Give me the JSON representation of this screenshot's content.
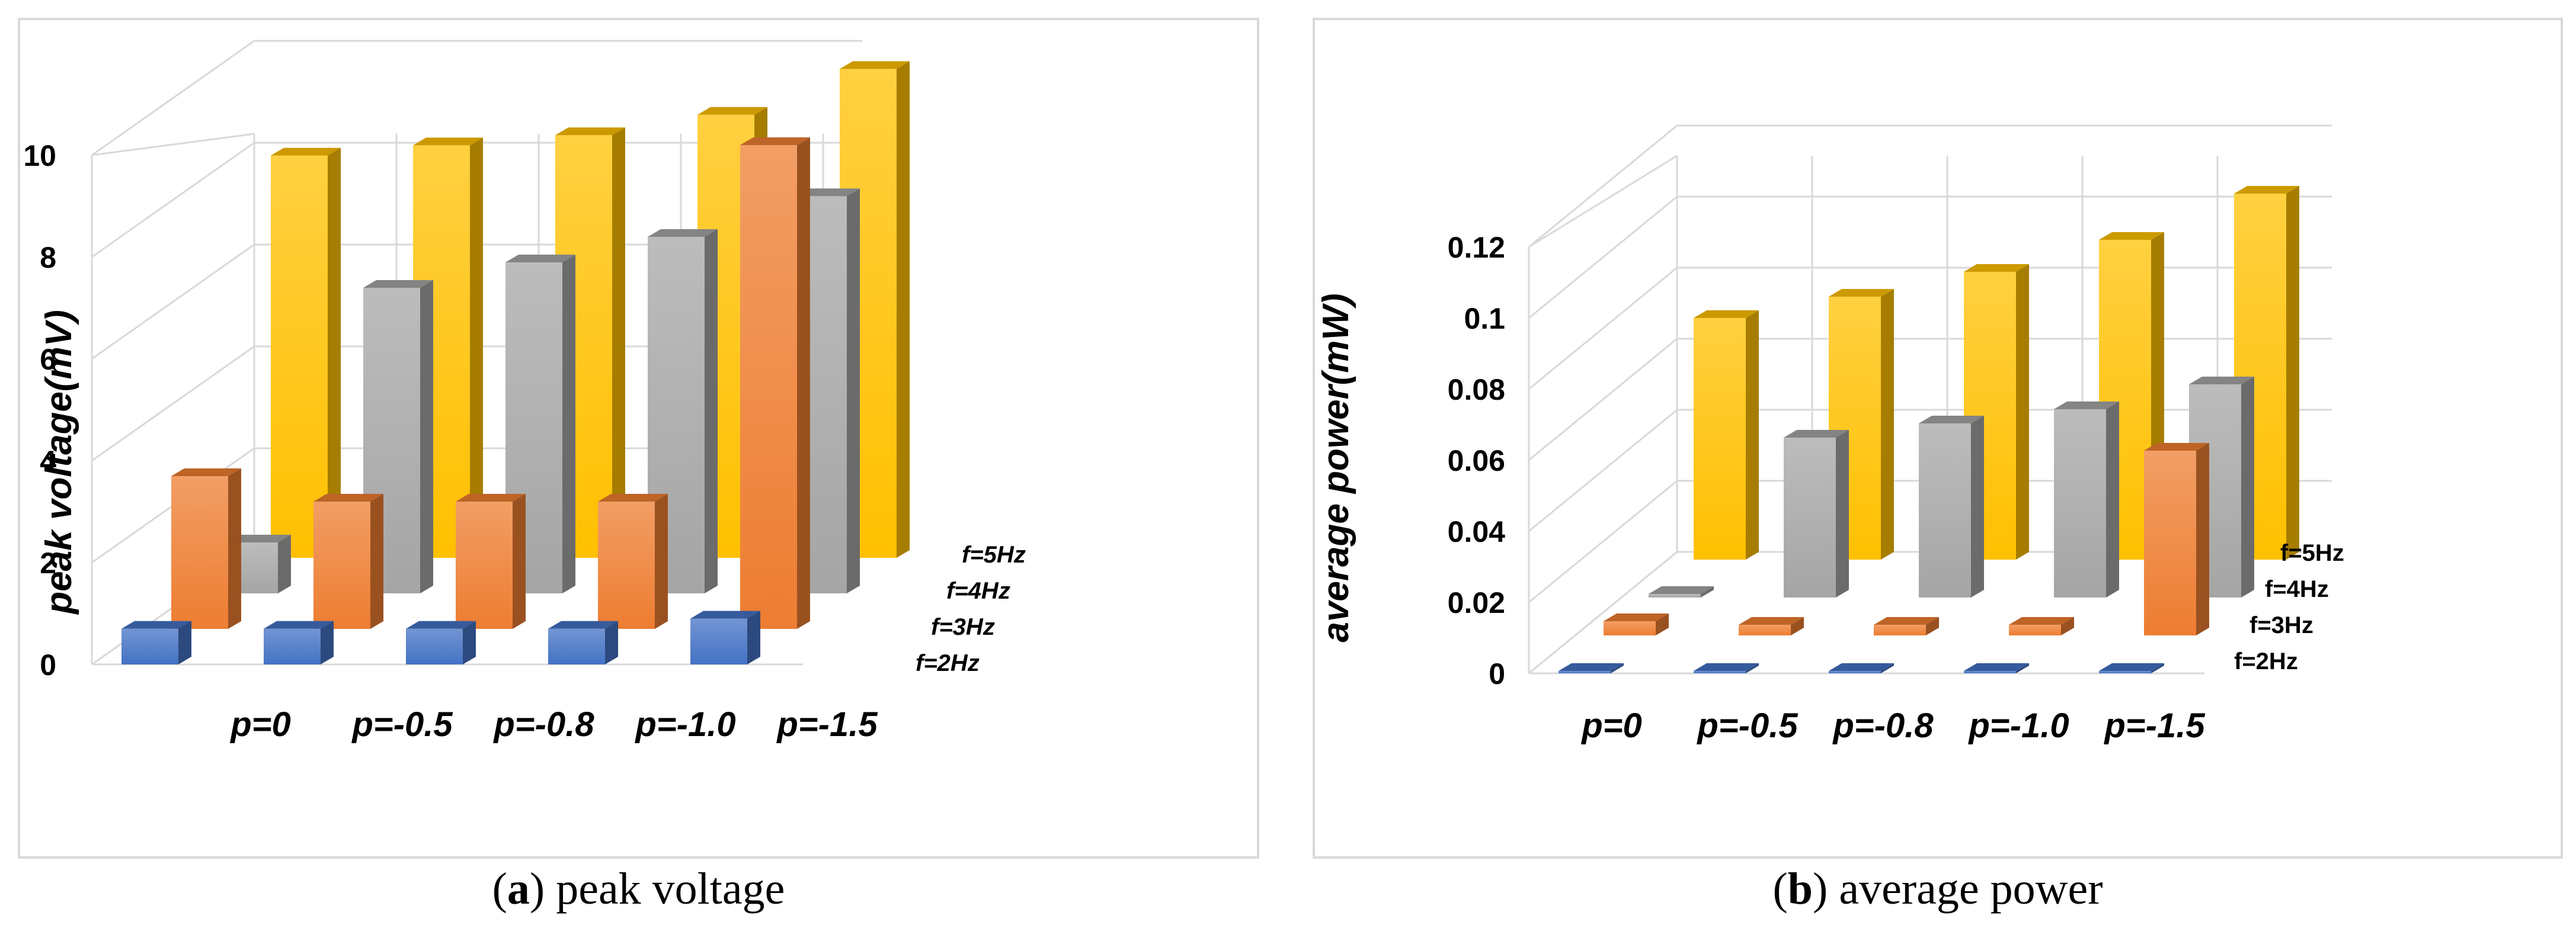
{
  "chart_data": [
    {
      "type": "bar3d",
      "title": "",
      "ylabel": "peak voltage(mV)",
      "categories": [
        "p=0",
        "p=-0.5",
        "p=-0.8",
        "p=-1.0",
        "p=-1.5"
      ],
      "yticks": [
        "0",
        "2",
        "4",
        "6",
        "8",
        "10"
      ],
      "ylim": [
        0,
        10
      ],
      "series": [
        {
          "name": "f=2Hz",
          "color": "#4472c4",
          "values": [
            0.7,
            0.7,
            0.7,
            0.7,
            0.9
          ]
        },
        {
          "name": "f=3Hz",
          "color": "#ed7d31",
          "values": [
            3.0,
            2.5,
            2.5,
            2.5,
            9.5
          ]
        },
        {
          "name": "f=4Hz",
          "color": "#a5a5a5",
          "values": [
            1.0,
            6.0,
            6.5,
            7.0,
            7.8
          ]
        },
        {
          "name": "f=5Hz",
          "color": "#ffc000",
          "values": [
            7.9,
            8.1,
            8.3,
            8.7,
            9.6
          ]
        }
      ]
    },
    {
      "type": "bar3d",
      "title": "",
      "ylabel": "average power(mW)",
      "categories": [
        "p=0",
        "p=-0.5",
        "p=-0.8",
        "p=-1.0",
        "p=-1.5"
      ],
      "yticks": [
        "0",
        "0.02",
        "0.04",
        "0.06",
        "0.08",
        "0.1",
        "0.12"
      ],
      "ylim": [
        0,
        0.12
      ],
      "series": [
        {
          "name": "f=2Hz",
          "color": "#4472c4",
          "values": [
            0.0005,
            0.0005,
            0.0005,
            0.0005,
            0.0005
          ]
        },
        {
          "name": "f=3Hz",
          "color": "#ed7d31",
          "values": [
            0.004,
            0.003,
            0.003,
            0.003,
            0.052
          ]
        },
        {
          "name": "f=4Hz",
          "color": "#a5a5a5",
          "values": [
            0.001,
            0.045,
            0.049,
            0.053,
            0.06
          ]
        },
        {
          "name": "f=5Hz",
          "color": "#ffc000",
          "values": [
            0.068,
            0.074,
            0.081,
            0.09,
            0.103
          ]
        }
      ]
    }
  ],
  "captions": [
    {
      "letter": "a",
      "text": " peak voltage"
    },
    {
      "letter": "b",
      "text": " average power"
    }
  ]
}
